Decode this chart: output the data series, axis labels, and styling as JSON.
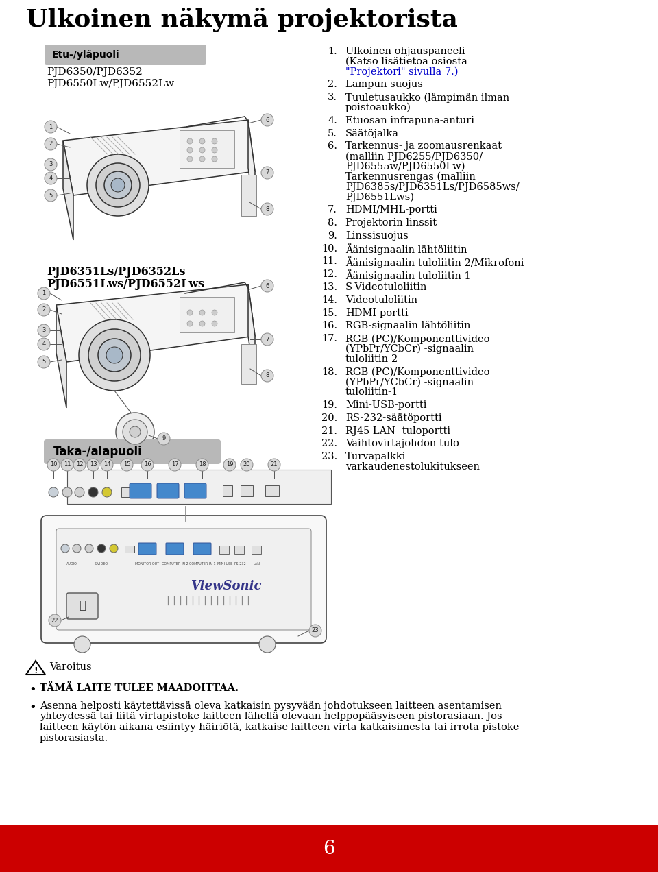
{
  "title": "Ulkoinen näkymä projektorista",
  "bg_color": "#ffffff",
  "footer_color": "#cc0000",
  "footer_text": "6",
  "label_etu": "Etu-/yläpuoli",
  "label_etu_models1": "PJD6350/PJD6352",
  "label_etu_models2": "PJD6550Lw/PJD6552Lw",
  "label_taka": "Taka-/alapuoli",
  "label_model2_1": "PJD6351Ls/PJD6352Ls",
  "label_model2_2": "PJD6551Lws/PJD6552Lws",
  "list_items": [
    {
      "num": "1.",
      "text": "Ulkoinen ohjauspaneeli\n(Katso lisätietoa osiosta\n\"Projektori\" sivulla 7.)"
    },
    {
      "num": "2.",
      "text": "Lampun suojus"
    },
    {
      "num": "3.",
      "text": "Tuuletusaukko (lämpimän ilman\npoistoaukko)"
    },
    {
      "num": "4.",
      "text": "Etuosan infrapuna-anturi"
    },
    {
      "num": "5.",
      "text": "Säätöjalka"
    },
    {
      "num": "6.",
      "text": "Tarkennus- ja zoomausrenkaat\n(malliin PJD6255/PJD6350/\nPJD6555w/PJD6550Lw)\nTarkennusrengas (malliin\nPJD6385s/PJD6351Ls/PJD6585ws/\nPJD6551Lws)"
    },
    {
      "num": "7.",
      "text": "HDMI/MHL-portti"
    },
    {
      "num": "8.",
      "text": "Projektorin linssit"
    },
    {
      "num": "9.",
      "text": "Linssisuojus"
    },
    {
      "num": "10.",
      "text": "Äänisignaalin lähtöliitin"
    },
    {
      "num": "11.",
      "text": "Äänisignaalin tuloliitin 2/Mikrofoni"
    },
    {
      "num": "12.",
      "text": "Äänisignaalin tuloliitin 1"
    },
    {
      "num": "13.",
      "text": "S-Videotuloliitin"
    },
    {
      "num": "14.",
      "text": "Videotuloliitin"
    },
    {
      "num": "15.",
      "text": "HDMI-portti"
    },
    {
      "num": "16.",
      "text": "RGB-signaalin lähtöliitin"
    },
    {
      "num": "17.",
      "text": "RGB (PC)/Komponenttivideo\n(YPbPr/YCbCr) -signaalin\ntuloliitin-2"
    },
    {
      "num": "18.",
      "text": "RGB (PC)/Komponenttivideo\n(YPbPr/YCbCr) -signaalin\ntuloliitin-1"
    },
    {
      "num": "19.",
      "text": "Mini-USB-portti"
    },
    {
      "num": "20.",
      "text": "RS-232-säätöportti"
    },
    {
      "num": "21.",
      "text": "RJ45 LAN -tuloportti"
    },
    {
      "num": "22.",
      "text": "Vaihtovirtajohdon tulo"
    },
    {
      "num": "23.",
      "text": "Turvapalkki\nvarkaudenestolukitukseen"
    }
  ],
  "warning_title": "Varoitus",
  "warning_bullet1": "TÄMÄ LAITE TULEE MAADOITTAA.",
  "warning_bullet2": "Asenna helposti käytettävissä oleva katkaisin pysyvään johdotukseen laitteen asentamisen\nyhteydessä tai liitä virtapistoke laitteen lähellä olevaan helppopääsyiseen pistorasiaan. Jos\nlaitteen käytön aikana esiintyy häiriötä, katkaise laitteen virta katkaisimesta tai irrota pistoke\npistorasiasta.",
  "link_color": "#0000cc",
  "lc": "#222222",
  "lw": 1.0
}
